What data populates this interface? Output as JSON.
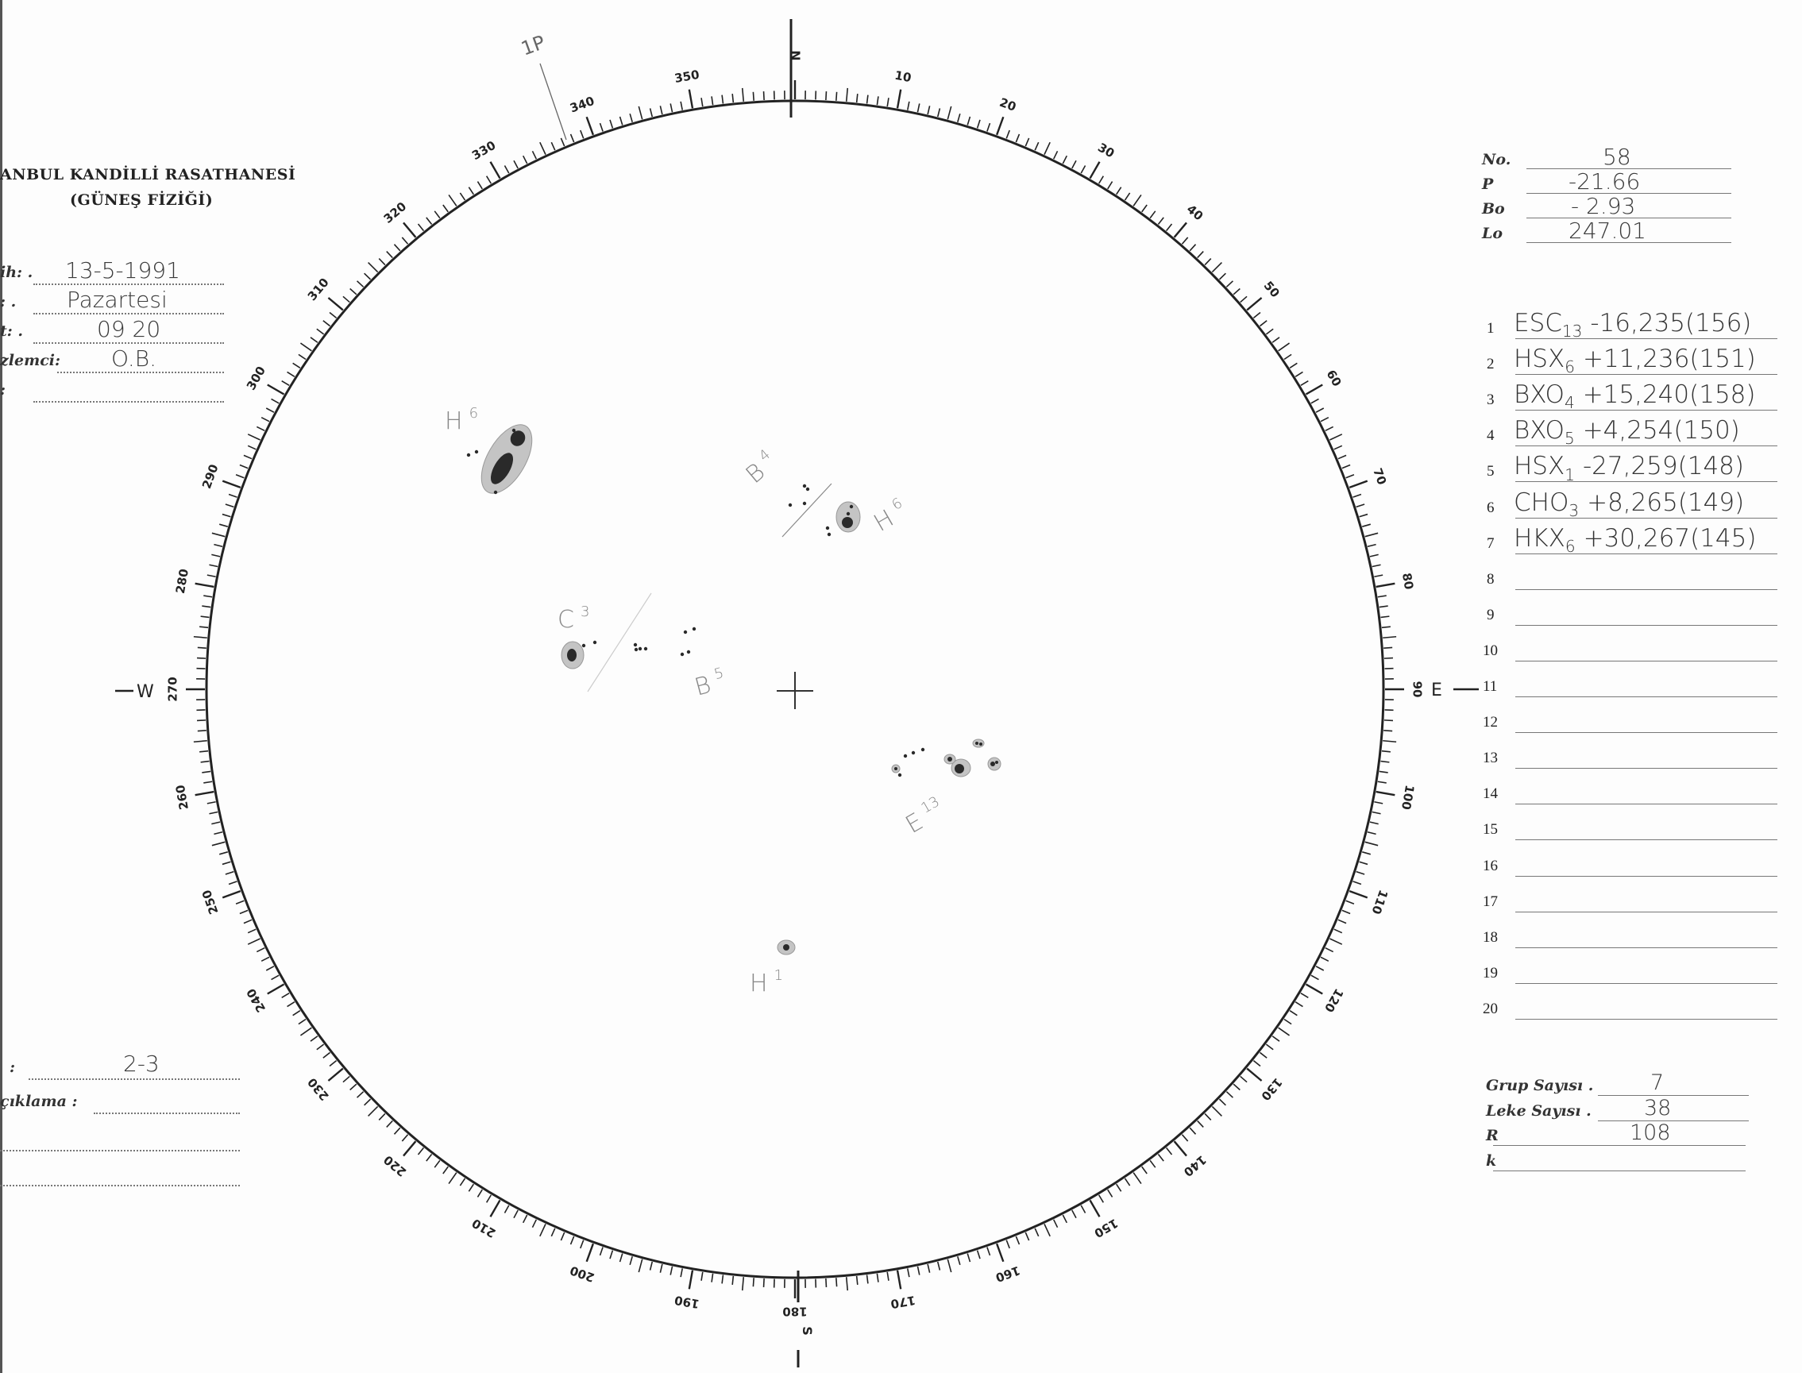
{
  "header": {
    "institution": "ANBUL KANDİLLİ RASATHANESİ",
    "department": "(GÜNEŞ FİZİĞİ)"
  },
  "form_left": [
    {
      "label": "ih: .",
      "value": "13-5-1991"
    },
    {
      "label": ": .",
      "value": "Pazartesi"
    },
    {
      "label": "t: .",
      "value": "09 20"
    },
    {
      "label": "zlemci:",
      "value": "O.B."
    },
    {
      "label": ":",
      "value": ""
    }
  ],
  "form_bottom_left": [
    {
      "label": ":",
      "value": "2-3"
    },
    {
      "label": "çıklama :",
      "value": ""
    }
  ],
  "ephemeris": [
    {
      "label": "No.",
      "value": "58"
    },
    {
      "label": "P",
      "value": "-21.66"
    },
    {
      "label": "Bo",
      "value": "- 2.93"
    },
    {
      "label": "Lo",
      "value": "247.01"
    }
  ],
  "groups": [
    {
      "n": "1",
      "cls": "ESC",
      "count": "13",
      "pos": "-16,235",
      "cmd": "(156)"
    },
    {
      "n": "2",
      "cls": "HSX",
      "count": "6",
      "pos": "+11,236",
      "cmd": "(151)"
    },
    {
      "n": "3",
      "cls": "BXO",
      "count": "4",
      "pos": "+15,240",
      "cmd": "(158)"
    },
    {
      "n": "4",
      "cls": "BXO",
      "count": "5",
      "pos": "+4,254",
      "cmd": "(150)"
    },
    {
      "n": "5",
      "cls": "HSX",
      "count": "1",
      "pos": "-27,259",
      "cmd": "(148)"
    },
    {
      "n": "6",
      "cls": "CHO",
      "count": "3",
      "pos": "+8,265",
      "cmd": "(149)"
    },
    {
      "n": "7",
      "cls": "HKX",
      "count": "6",
      "pos": "+30,267",
      "cmd": "(145)"
    },
    {
      "n": "8"
    },
    {
      "n": "9"
    },
    {
      "n": "10"
    },
    {
      "n": "11"
    },
    {
      "n": "12"
    },
    {
      "n": "13"
    },
    {
      "n": "14"
    },
    {
      "n": "15"
    },
    {
      "n": "16"
    },
    {
      "n": "17"
    },
    {
      "n": "18"
    },
    {
      "n": "19"
    },
    {
      "n": "20"
    }
  ],
  "summary": [
    {
      "label": "Grup Sayısı .",
      "value": "7"
    },
    {
      "label": "Leke Sayısı .",
      "value": "38"
    },
    {
      "label": "R",
      "value": "108"
    },
    {
      "label": "k",
      "value": ""
    }
  ],
  "disk": {
    "cardinal": {
      "N": "N",
      "S": "S",
      "E": "E",
      "W": "W",
      "axis_label": "1P"
    },
    "scale_labels": [
      "10",
      "20",
      "30",
      "40",
      "50",
      "60",
      "70",
      "80",
      "90",
      "100",
      "110",
      "120",
      "130",
      "140",
      "150",
      "160",
      "170",
      "180",
      "190",
      "200",
      "210",
      "220",
      "230",
      "240",
      "250",
      "260",
      "270",
      "280",
      "290",
      "300",
      "310",
      "320",
      "330",
      "340",
      "350"
    ],
    "group_labels": [
      {
        "cls": "H",
        "count": "6"
      },
      {
        "cls": "B",
        "count": "4"
      },
      {
        "cls": "H",
        "count": "6"
      },
      {
        "cls": "C",
        "count": "3"
      },
      {
        "cls": "B",
        "count": "5"
      },
      {
        "cls": "E",
        "count": "13"
      },
      {
        "cls": "H",
        "count": "1"
      }
    ]
  },
  "colors": {
    "ink": "#222222",
    "penumbra": "#c4c4c4",
    "umbra": "#2a2a2a",
    "pencil": "#555555"
  }
}
